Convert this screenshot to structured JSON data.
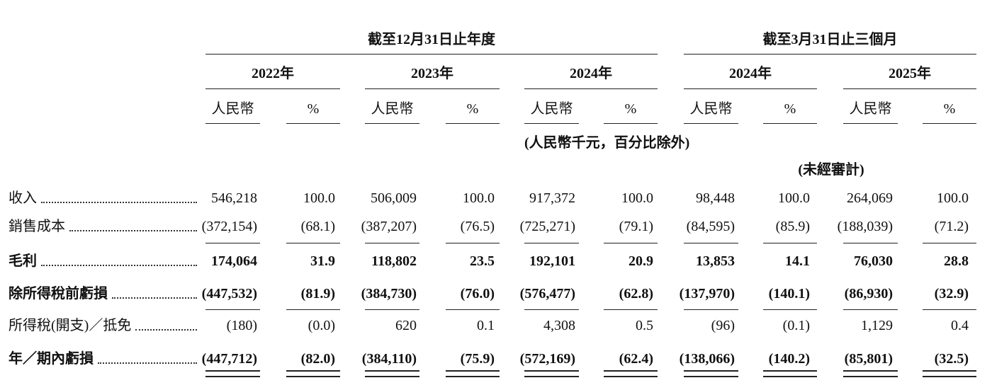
{
  "header": {
    "groups": [
      "截至12月31日止年度",
      "截至3月31日止三個月"
    ],
    "years": [
      "2022年",
      "2023年",
      "2024年",
      "2024年",
      "2025年"
    ],
    "units": [
      "人民幣",
      "%",
      "人民幣",
      "%",
      "人民幣",
      "%",
      "人民幣",
      "%",
      "人民幣",
      "%"
    ],
    "note": "(人民幣千元，百分比除外)",
    "unaudited": "(未經審計)"
  },
  "table": {
    "rows": [
      {
        "label": "收入",
        "bold": false,
        "values": [
          "546,218",
          "100.0",
          "506,009",
          "100.0",
          "917,372",
          "100.0",
          "98,448",
          "100.0",
          "264,069",
          "100.0"
        ]
      },
      {
        "label": "銷售成本",
        "bold": false,
        "values": [
          "(372,154)",
          "(68.1)",
          "(387,207)",
          "(76.5)",
          "(725,271)",
          "(79.1)",
          "(84,595)",
          "(85.9)",
          "(188,039)",
          "(71.2)"
        ]
      },
      {
        "label": "毛利",
        "bold": true,
        "values": [
          "174,064",
          "31.9",
          "118,802",
          "23.5",
          "192,101",
          "20.9",
          "13,853",
          "14.1",
          "76,030",
          "28.8"
        ]
      },
      {
        "label": "除所得稅前虧損",
        "bold": true,
        "values": [
          "(447,532)",
          "(81.9)",
          "(384,730)",
          "(76.0)",
          "(576,477)",
          "(62.8)",
          "(137,970)",
          "(140.1)",
          "(86,930)",
          "(32.9)"
        ]
      },
      {
        "label": "所得稅(開支)／抵免",
        "bold": false,
        "values": [
          "(180)",
          "(0.0)",
          "620",
          "0.1",
          "4,308",
          "0.5",
          "(96)",
          "(0.1)",
          "1,129",
          "0.4"
        ]
      },
      {
        "label": "年／期內虧損",
        "bold": true,
        "values": [
          "(447,712)",
          "(82.0)",
          "(384,110)",
          "(75.9)",
          "(572,169)",
          "(62.4)",
          "(138,066)",
          "(140.2)",
          "(85,801)",
          "(32.5)"
        ]
      }
    ]
  }
}
